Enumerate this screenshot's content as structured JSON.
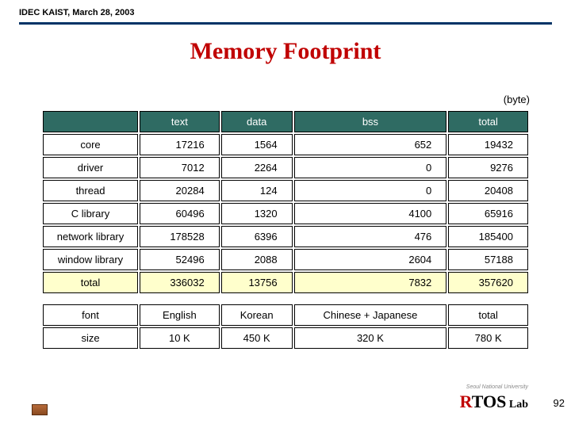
{
  "header": {
    "breadcrumb": "IDEC KAIST, March 28, 2003",
    "title": "Memory Footprint",
    "unit_label": "(byte)"
  },
  "table1": {
    "columns": [
      "text",
      "data",
      "bss",
      "total"
    ],
    "rows": [
      {
        "label": "core",
        "cells": [
          "17216",
          "1564",
          "652",
          "19432"
        ]
      },
      {
        "label": "driver",
        "cells": [
          "7012",
          "2264",
          "0",
          "9276"
        ]
      },
      {
        "label": "thread",
        "cells": [
          "20284",
          "124",
          "0",
          "20408"
        ]
      },
      {
        "label": "C library",
        "cells": [
          "60496",
          "1320",
          "4100",
          "65916"
        ]
      },
      {
        "label": "network library",
        "cells": [
          "178528",
          "6396",
          "476",
          "185400"
        ]
      },
      {
        "label": "window library",
        "cells": [
          "52496",
          "2088",
          "2604",
          "57188"
        ]
      }
    ],
    "total_row": {
      "label": "total",
      "cells": [
        "336032",
        "13756",
        "7832",
        "357620"
      ]
    }
  },
  "table2": {
    "rows": [
      {
        "label": "font",
        "cells": [
          "English",
          "Korean",
          "Chinese + Japanese",
          "total"
        ]
      },
      {
        "label": "size",
        "cells": [
          "10 K",
          "450 K",
          "320 K",
          "780 K"
        ]
      }
    ]
  },
  "footer": {
    "university": "Seoul National University",
    "logo_r": "R",
    "logo_tos": "TOS",
    "logo_lab": " Lab",
    "page": "92"
  },
  "styling": {
    "accent_color": "#c00000",
    "header_bg": "#2f6b63",
    "rule_color": "#003366",
    "highlight_bg": "#ffffcc",
    "body_font_size": 13,
    "title_font_size": 30,
    "title_font_family": "Times New Roman"
  }
}
